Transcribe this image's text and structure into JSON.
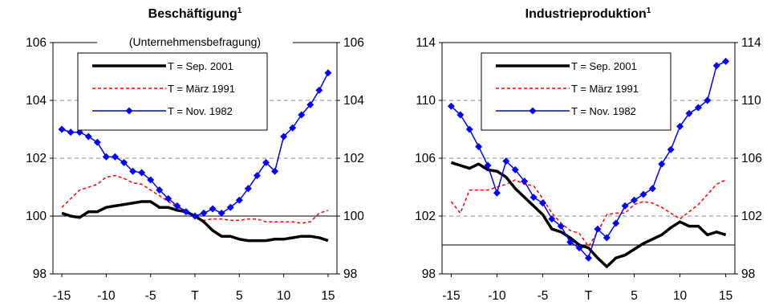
{
  "chart_data": [
    {
      "type": "line",
      "title": "Beschäftigung",
      "title_superscript": "1",
      "subtitle": "(Unternehmensbefragung)",
      "x_tick_labels": [
        "-15",
        "-10",
        "-5",
        "T",
        "5",
        "10",
        "15"
      ],
      "x_tick_values": [
        -15,
        -10,
        -5,
        0,
        5,
        10,
        15
      ],
      "xlim": [
        -16,
        16
      ],
      "ylim": [
        98,
        106
      ],
      "y_ticks": [
        98,
        100,
        102,
        104,
        106
      ],
      "y_ticks_right": [
        98,
        100,
        102,
        104,
        106
      ],
      "reference_line": 100,
      "gridlines_dashed": [
        102,
        104
      ],
      "legend_position": "top-center",
      "series": [
        {
          "name": "T = Sep. 2001",
          "color": "#000000",
          "style": "solid-thick",
          "x": [
            -15,
            -14,
            -13,
            -12,
            -11,
            -10,
            -9,
            -8,
            -7,
            -6,
            -5,
            -4,
            -3,
            -2,
            -1,
            0,
            1,
            2,
            3,
            4,
            5,
            6,
            7,
            8,
            9,
            10,
            11,
            12,
            13,
            14,
            15
          ],
          "values": [
            100.1,
            100.0,
            99.95,
            100.15,
            100.15,
            100.3,
            100.35,
            100.4,
            100.45,
            100.5,
            100.5,
            100.3,
            100.3,
            100.2,
            100.15,
            100.0,
            99.8,
            99.5,
            99.3,
            99.3,
            99.2,
            99.15,
            99.15,
            99.15,
            99.2,
            99.2,
            99.25,
            99.3,
            99.3,
            99.25,
            99.15
          ]
        },
        {
          "name": "T = März 1991",
          "color": "#ff0000",
          "style": "dashed",
          "x": [
            -15,
            -14,
            -13,
            -12,
            -11,
            -10,
            -9,
            -8,
            -7,
            -6,
            -5,
            -4,
            -3,
            -2,
            -1,
            0,
            1,
            2,
            3,
            4,
            5,
            6,
            7,
            8,
            9,
            10,
            11,
            12,
            13,
            14,
            15
          ],
          "values": [
            100.3,
            100.6,
            100.9,
            101.0,
            101.1,
            101.35,
            101.4,
            101.3,
            101.15,
            101.1,
            100.9,
            100.7,
            100.5,
            100.3,
            100.2,
            100.0,
            99.85,
            99.9,
            99.9,
            99.85,
            99.85,
            99.9,
            99.9,
            99.8,
            99.8,
            99.8,
            99.8,
            99.75,
            99.8,
            100.1,
            100.2
          ]
        },
        {
          "name": "T = Nov. 1982",
          "color": "#0000ff",
          "style": "solid-markers",
          "x": [
            -15,
            -14,
            -13,
            -12,
            -11,
            -10,
            -9,
            -8,
            -7,
            -6,
            -5,
            -4,
            -3,
            -2,
            -1,
            0,
            1,
            2,
            3,
            4,
            5,
            6,
            7,
            8,
            9,
            10,
            11,
            12,
            13,
            14,
            15
          ],
          "values": [
            103.0,
            102.9,
            102.9,
            102.75,
            102.55,
            102.05,
            102.05,
            101.85,
            101.55,
            101.5,
            101.25,
            100.9,
            100.6,
            100.35,
            100.15,
            100.0,
            100.1,
            100.25,
            100.1,
            100.3,
            100.55,
            100.95,
            101.4,
            101.85,
            101.55,
            102.75,
            103.05,
            103.5,
            103.85,
            104.35,
            104.95
          ]
        }
      ]
    },
    {
      "type": "line",
      "title": "Industrieproduktion",
      "title_superscript": "1",
      "x_tick_labels": [
        "-15",
        "-10",
        "-5",
        "T",
        "5",
        "10",
        "15"
      ],
      "x_tick_values": [
        -15,
        -10,
        -5,
        0,
        5,
        10,
        15
      ],
      "xlim": [
        -16,
        16
      ],
      "ylim": [
        98,
        114
      ],
      "y_ticks": [
        98,
        102,
        106,
        110,
        114
      ],
      "y_ticks_right": [
        98,
        102,
        106,
        110,
        114
      ],
      "reference_line": 100,
      "gridlines_dashed": [
        102,
        106,
        110
      ],
      "legend_position": "top-center",
      "series": [
        {
          "name": "T = Sep. 2001",
          "color": "#000000",
          "style": "solid-thick",
          "x": [
            -15,
            -14,
            -13,
            -12,
            -11,
            -10,
            -9,
            -8,
            -7,
            -6,
            -5,
            -4,
            -3,
            -2,
            -1,
            0,
            1,
            2,
            3,
            4,
            5,
            6,
            7,
            8,
            9,
            10,
            11,
            12,
            13,
            14,
            15
          ],
          "values": [
            105.7,
            105.5,
            105.3,
            105.6,
            105.2,
            105.1,
            104.7,
            103.9,
            103.3,
            102.7,
            102.1,
            101.1,
            100.9,
            100.5,
            100.0,
            99.8,
            99.1,
            98.5,
            99.1,
            99.3,
            99.7,
            100.1,
            100.4,
            100.7,
            101.2,
            101.6,
            101.3,
            101.3,
            100.7,
            100.9,
            100.7
          ]
        },
        {
          "name": "T = März 1991",
          "color": "#ff0000",
          "style": "dashed",
          "x": [
            -15,
            -14,
            -13,
            -12,
            -11,
            -10,
            -9,
            -8,
            -7,
            -6,
            -5,
            -4,
            -3,
            -2,
            -1,
            0,
            1,
            2,
            3,
            4,
            5,
            6,
            7,
            8,
            9,
            10,
            11,
            12,
            13,
            14,
            15
          ],
          "values": [
            103.0,
            102.2,
            103.8,
            103.8,
            103.8,
            104.0,
            104.2,
            104.5,
            104.2,
            104.1,
            103.2,
            102.2,
            101.5,
            101.0,
            100.8,
            99.9,
            100.9,
            102.1,
            102.2,
            102.2,
            102.8,
            103.0,
            102.9,
            102.6,
            102.2,
            101.8,
            102.3,
            102.8,
            103.5,
            104.2,
            104.5
          ]
        },
        {
          "name": "T = Nov. 1982",
          "color": "#0000ff",
          "style": "solid-markers",
          "x": [
            -15,
            -14,
            -13,
            -12,
            -11,
            -10,
            -9,
            -8,
            -7,
            -6,
            -5,
            -4,
            -3,
            -2,
            -1,
            0,
            1,
            2,
            3,
            4,
            5,
            6,
            7,
            8,
            9,
            10,
            11,
            12,
            13,
            14,
            15
          ],
          "values": [
            109.6,
            109.0,
            108.0,
            106.8,
            105.5,
            103.6,
            105.8,
            105.2,
            104.4,
            103.3,
            102.9,
            101.8,
            101.3,
            100.2,
            99.8,
            99.1,
            101.1,
            100.5,
            101.5,
            102.7,
            103.1,
            103.5,
            103.9,
            105.6,
            106.6,
            108.2,
            109.1,
            109.5,
            110.0,
            112.4,
            112.7
          ]
        }
      ]
    }
  ]
}
